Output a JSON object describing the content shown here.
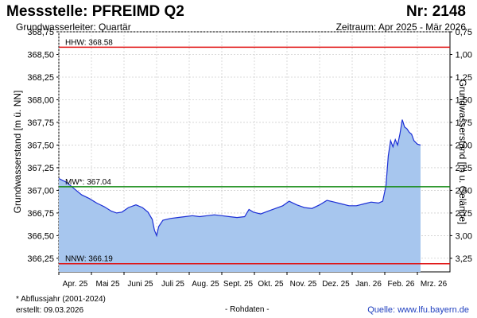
{
  "header": {
    "title": "Messstelle: PFREIMD Q2",
    "number": "Nr: 2148",
    "aquifer": "Grundwasserleiter: Quartär",
    "period": "Zeitraum: Apr 2025 - Mär 2026"
  },
  "footer": {
    "footnote": "* Abflussjahr (2001-2024)",
    "created": "erstellt:  09.03.2026",
    "raw": "- Rohdaten -",
    "source": "Quelle: www.lfu.bayern.de"
  },
  "colors": {
    "fill": "#a7c6ee",
    "line": "#1c2fd6",
    "hhw": "#e01010",
    "mw": "#138a13",
    "nnw": "#e01010",
    "grid": "#cfcfcf"
  },
  "chart_data": {
    "type": "area",
    "ylabel": "Grundwasserstand [m ü. NN]",
    "y2label": "Grundwasserstand [m u. Gelände]",
    "ylim": [
      366.1,
      368.75
    ],
    "y_ticks": [
      "368,75",
      "368,50",
      "368,25",
      "368,00",
      "367,75",
      "367,50",
      "367,25",
      "367,00",
      "366,75",
      "366,50",
      "366,25"
    ],
    "y2_ticks": [
      "0,75",
      "1,00",
      "1,25",
      "1,50",
      "1,75",
      "2,00",
      "2,25",
      "2,50",
      "2,75",
      "3,00",
      "3,25"
    ],
    "x_labels": [
      "Apr. 25",
      "Mai 25",
      "Juni 25",
      "Juli 25",
      "Aug. 25",
      "Sept. 25",
      "Okt. 25",
      "Nov. 25",
      "Dez. 25",
      "Jan. 26",
      "Feb. 26",
      "Mrz. 26"
    ],
    "x_start": "2025-04-01",
    "reference_lines": [
      {
        "label": "HHW: 368.58",
        "value": 368.58
      },
      {
        "label": "MW*: 367.04",
        "value": 367.04
      },
      {
        "label": "NNW: 366.19",
        "value": 366.19
      }
    ],
    "series": [
      {
        "x": [
          "2025-04-01",
          "2025-04-08",
          "2025-04-15",
          "2025-04-22",
          "2025-04-29",
          "2025-05-06",
          "2025-05-13",
          "2025-05-20",
          "2025-05-25",
          "2025-05-30",
          "2025-06-05",
          "2025-06-12",
          "2025-06-18",
          "2025-06-23",
          "2025-06-27",
          "2025-06-29",
          "2025-07-01",
          "2025-07-03",
          "2025-07-07",
          "2025-07-14",
          "2025-07-21",
          "2025-07-28",
          "2025-08-04",
          "2025-08-11",
          "2025-08-18",
          "2025-08-25",
          "2025-09-01",
          "2025-09-08",
          "2025-09-15",
          "2025-09-22",
          "2025-09-26",
          "2025-09-30",
          "2025-10-07",
          "2025-10-14",
          "2025-10-21",
          "2025-10-28",
          "2025-11-03",
          "2025-11-10",
          "2025-11-17",
          "2025-11-24",
          "2025-12-01",
          "2025-12-08",
          "2025-12-15",
          "2025-12-22",
          "2025-12-29",
          "2026-01-05",
          "2026-01-12",
          "2026-01-19",
          "2026-01-26",
          "2026-01-30",
          "2026-02-02",
          "2026-02-04",
          "2026-02-06",
          "2026-02-08",
          "2026-02-10",
          "2026-02-12",
          "2026-02-14",
          "2026-02-16",
          "2026-02-18",
          "2026-02-20",
          "2026-02-22",
          "2026-02-24",
          "2026-02-26",
          "2026-03-01",
          "2026-03-04"
        ],
        "y": [
          367.13,
          367.09,
          367.02,
          366.95,
          366.91,
          366.86,
          366.82,
          366.77,
          366.75,
          366.76,
          366.81,
          366.84,
          366.81,
          366.76,
          366.68,
          366.56,
          366.5,
          366.6,
          366.67,
          366.69,
          366.7,
          366.71,
          366.72,
          366.71,
          366.72,
          366.73,
          366.72,
          366.71,
          366.7,
          366.71,
          366.79,
          366.76,
          366.74,
          366.77,
          366.8,
          366.83,
          366.88,
          366.84,
          366.81,
          366.8,
          366.84,
          366.89,
          366.87,
          366.85,
          366.83,
          366.83,
          366.85,
          366.87,
          366.86,
          366.88,
          367.05,
          367.38,
          367.55,
          367.48,
          367.56,
          367.5,
          367.62,
          367.78,
          367.7,
          367.68,
          367.64,
          367.62,
          367.55,
          367.51,
          367.5
        ]
      }
    ]
  }
}
